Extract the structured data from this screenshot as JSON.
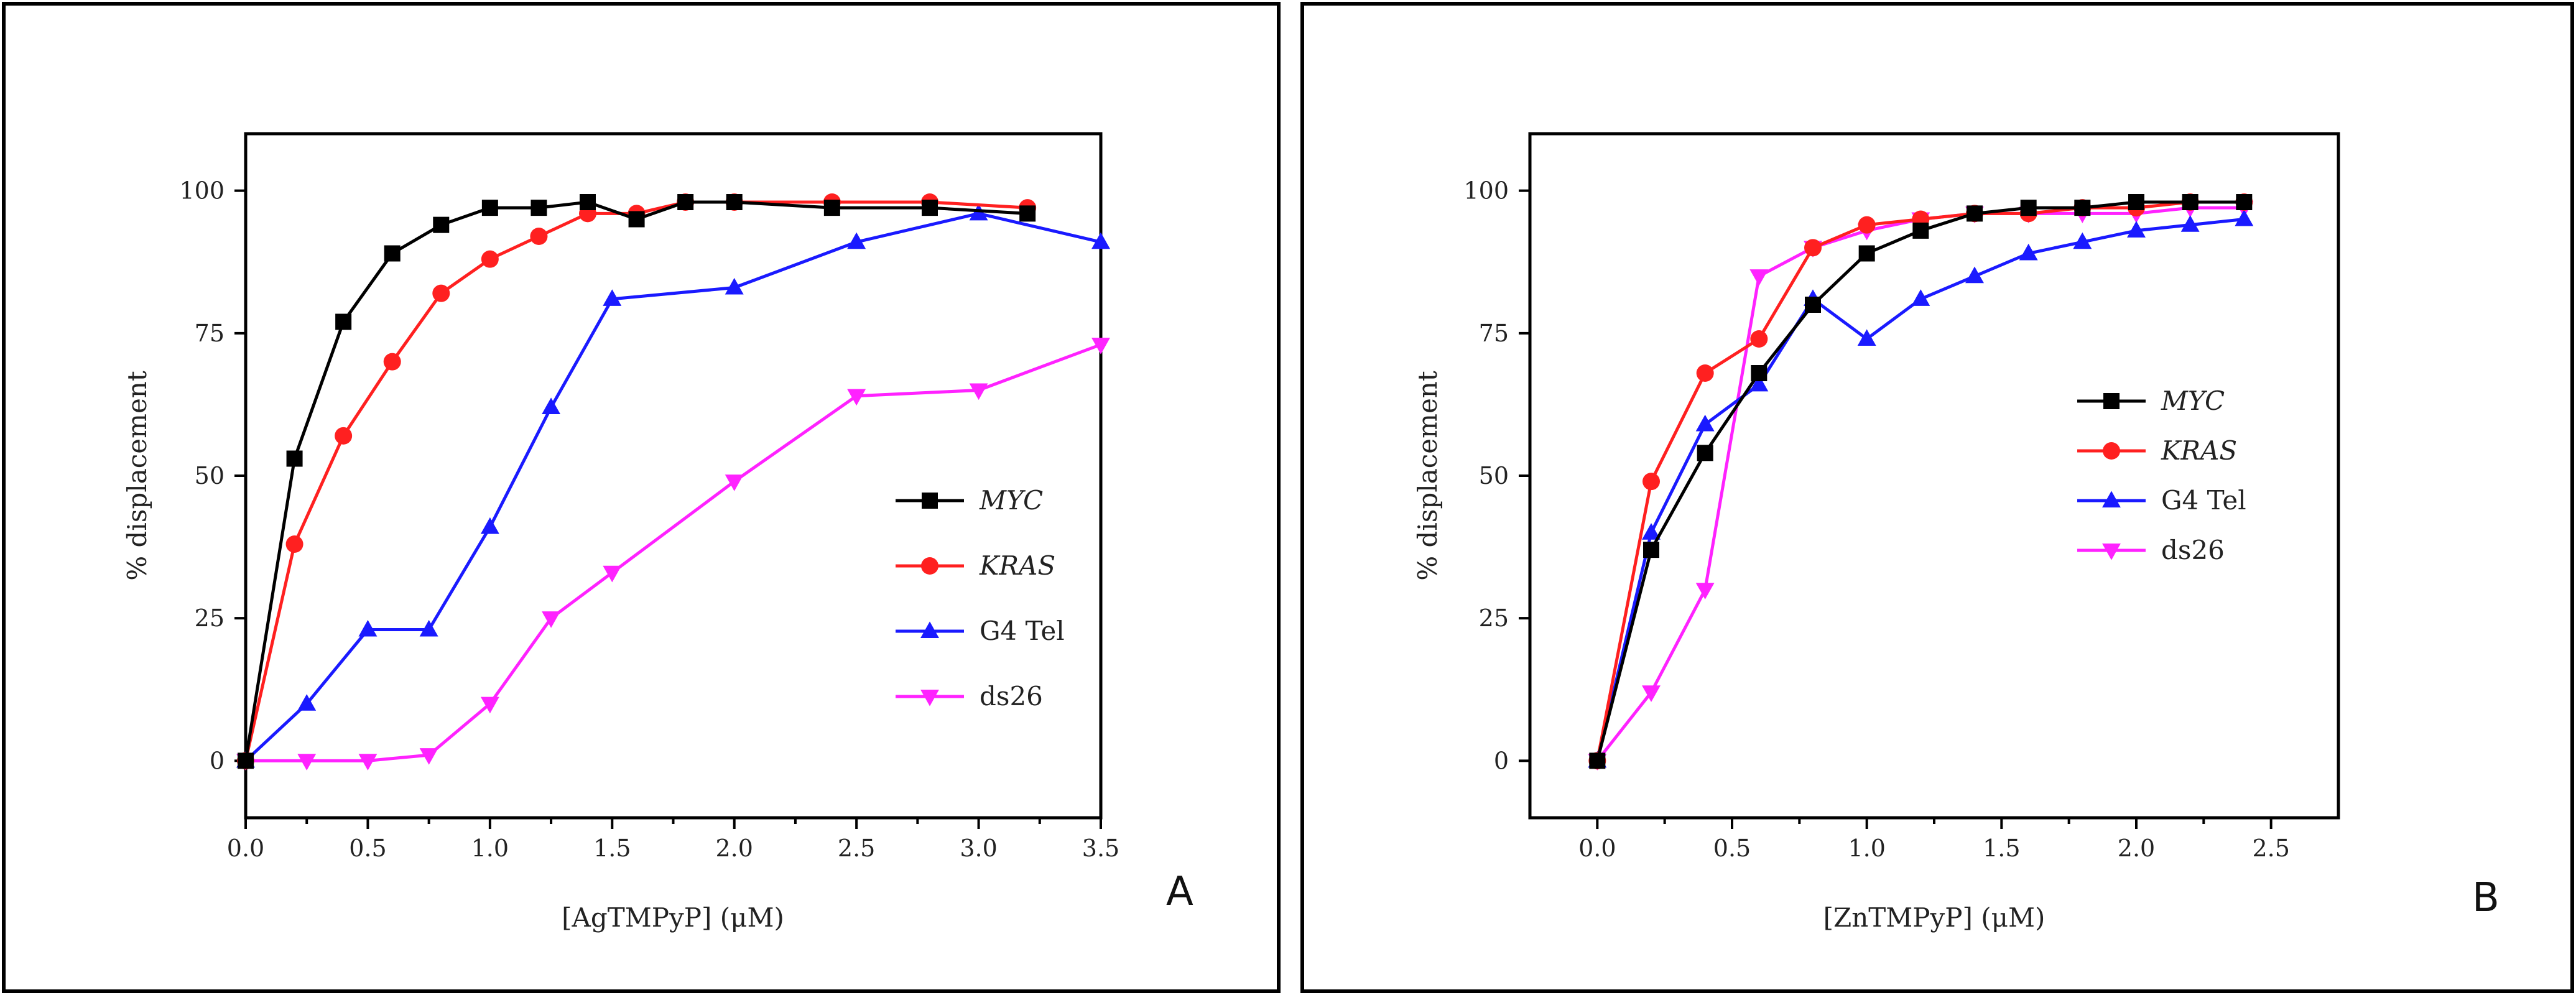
{
  "chart_data": [
    {
      "id": "A",
      "type": "line",
      "panel_label": "A",
      "xlabel": "[AgTMPyP] (μM)",
      "ylabel": "% displacement",
      "xlim": [
        0,
        3.5
      ],
      "ylim": [
        -10,
        110
      ],
      "xticks": [
        "0.0",
        "0.5",
        "1.0",
        "1.5",
        "2.0",
        "2.5",
        "3.0",
        "3.5"
      ],
      "yticks": [
        "0",
        "25",
        "50",
        "75",
        "100"
      ],
      "legend_position": "center-right",
      "series": [
        {
          "name": "MYC",
          "italic": true,
          "color": "#000000",
          "marker": "square",
          "x": [
            0,
            0.2,
            0.4,
            0.6,
            0.8,
            1.0,
            1.2,
            1.4,
            1.6,
            1.8,
            2.0,
            2.4,
            2.8,
            3.2
          ],
          "y": [
            0,
            53,
            77,
            89,
            94,
            97,
            97,
            98,
            95,
            98,
            98,
            97,
            97,
            96
          ]
        },
        {
          "name": "KRAS",
          "italic": true,
          "color": "#ff2020",
          "marker": "circle",
          "x": [
            0,
            0.2,
            0.4,
            0.6,
            0.8,
            1.0,
            1.2,
            1.4,
            1.6,
            1.8,
            2.0,
            2.4,
            2.8,
            3.2
          ],
          "y": [
            0,
            38,
            57,
            70,
            82,
            88,
            92,
            96,
            96,
            98,
            98,
            98,
            98,
            97
          ]
        },
        {
          "name": "G4 Tel",
          "italic": false,
          "color": "#1a1aff",
          "marker": "triangle-up",
          "x": [
            0,
            0.25,
            0.5,
            0.75,
            1.0,
            1.25,
            1.5,
            2.0,
            2.5,
            3.0,
            3.5
          ],
          "y": [
            0,
            10,
            23,
            23,
            41,
            62,
            81,
            83,
            91,
            96,
            91
          ]
        },
        {
          "name": "ds26",
          "italic": false,
          "color": "#ff22ff",
          "marker": "triangle-down",
          "x": [
            0,
            0.25,
            0.5,
            0.75,
            1.0,
            1.25,
            1.5,
            2.0,
            2.5,
            3.0,
            3.5
          ],
          "y": [
            0,
            0,
            0,
            1,
            10,
            25,
            33,
            49,
            64,
            65,
            73
          ]
        }
      ]
    },
    {
      "id": "B",
      "type": "line",
      "panel_label": "B",
      "xlabel": "[ZnTMPyP] (μM)",
      "ylabel": "% displacement",
      "xlim": [
        -0.25,
        2.75
      ],
      "ylim": [
        -10,
        110
      ],
      "xticks": [
        "0.0",
        "0.5",
        "1.0",
        "1.5",
        "2.0",
        "2.5"
      ],
      "yticks": [
        "0",
        "25",
        "50",
        "75",
        "100"
      ],
      "legend_position": "center-right",
      "series": [
        {
          "name": "MYC",
          "italic": true,
          "color": "#000000",
          "marker": "square",
          "x": [
            0,
            0.2,
            0.4,
            0.6,
            0.8,
            1.0,
            1.2,
            1.4,
            1.6,
            1.8,
            2.0,
            2.2,
            2.4
          ],
          "y": [
            0,
            37,
            54,
            68,
            80,
            89,
            93,
            96,
            97,
            97,
            98,
            98,
            98
          ]
        },
        {
          "name": "KRAS",
          "italic": true,
          "color": "#ff2020",
          "marker": "circle",
          "x": [
            0,
            0.2,
            0.4,
            0.6,
            0.8,
            1.0,
            1.2,
            1.4,
            1.6,
            1.8,
            2.0,
            2.2,
            2.4
          ],
          "y": [
            0,
            49,
            68,
            74,
            90,
            94,
            95,
            96,
            96,
            97,
            97,
            98,
            98
          ]
        },
        {
          "name": "G4 Tel",
          "italic": false,
          "color": "#1a1aff",
          "marker": "triangle-up",
          "x": [
            0,
            0.2,
            0.4,
            0.6,
            0.8,
            1.0,
            1.2,
            1.4,
            1.6,
            1.8,
            2.0,
            2.2,
            2.4
          ],
          "y": [
            0,
            40,
            59,
            66,
            81,
            74,
            81,
            85,
            89,
            91,
            93,
            94,
            95
          ]
        },
        {
          "name": "ds26",
          "italic": false,
          "color": "#ff22ff",
          "marker": "triangle-down",
          "x": [
            0,
            0.2,
            0.4,
            0.6,
            0.8,
            1.0,
            1.2,
            1.4,
            1.6,
            1.8,
            2.0,
            2.2,
            2.4
          ],
          "y": [
            0,
            12,
            30,
            85,
            90,
            93,
            95,
            96,
            96,
            96,
            96,
            97,
            97
          ]
        }
      ]
    }
  ]
}
